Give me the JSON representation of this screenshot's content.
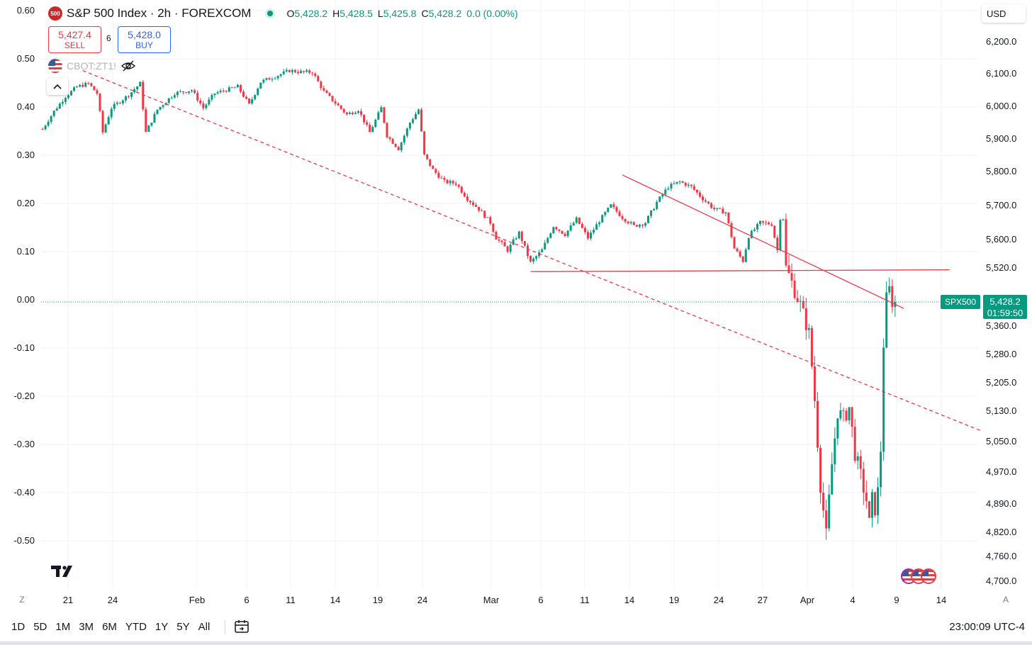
{
  "header": {
    "logo_text": "500",
    "symbol_title": "S&P 500 Index · 2h · FOREXCOM",
    "ohlc": {
      "o_label": "O",
      "o": "5,428.2",
      "h_label": "H",
      "h": "5,428.5",
      "l_label": "L",
      "l": "5,425.8",
      "c_label": "C",
      "c": "5,428.2",
      "change": "0.0 (0.00%)"
    }
  },
  "trade": {
    "sell_price": "5,427.4",
    "sell_label": "SELL",
    "spread": "6",
    "buy_price": "5,428.0",
    "buy_label": "BUY"
  },
  "compare": {
    "symbol": "CBOT:ZT1!"
  },
  "currency": "USD",
  "price_tag": {
    "symbol": "SPX500",
    "price": "5,428.2",
    "countdown": "01:59:50"
  },
  "colors": {
    "up": "#089981",
    "down": "#f23645",
    "trendline": "#f23645",
    "last_price": "#089981",
    "grid": "#f0f3fa"
  },
  "icons": [
    "eye-off-icon",
    "chevron-up-icon",
    "us-flag-icon",
    "date-range-icon",
    "tradingview-logo-icon"
  ],
  "chart_data": {
    "type": "candlestick",
    "right_axis": {
      "ticks": [
        6200,
        6100,
        6000,
        5900,
        5800,
        5700,
        5600,
        5520,
        5360,
        5280,
        5205,
        5130,
        5050,
        4970,
        4890,
        4820,
        4760,
        4700
      ],
      "tick_labels": [
        "6,200.0",
        "6,100.0",
        "6,000.0",
        "5,900.0",
        "5,800.0",
        "5,700.0",
        "5,600.0",
        "5,520.0",
        "5,360.0",
        "5,280.0",
        "5,205.0",
        "5,130.0",
        "5,050.0",
        "4,970.0",
        "4,890.0",
        "4,820.0",
        "4,760.0",
        "4,700.0"
      ]
    },
    "left_axis": {
      "ticks": [
        0.6,
        0.5,
        0.4,
        0.3,
        0.2,
        0.1,
        0.0,
        -0.1,
        -0.2,
        -0.3,
        -0.4,
        -0.5
      ],
      "tick_labels": [
        "0.60",
        "0.50",
        "0.40",
        "0.30",
        "0.20",
        "0.10",
        "0.00",
        "-0.10",
        "-0.20",
        "-0.30",
        "-0.40",
        "-0.50"
      ]
    },
    "x_axis": {
      "labels": [
        "21",
        "24",
        "Feb",
        "6",
        "11",
        "14",
        "19",
        "24",
        "Mar",
        "6",
        "11",
        "14",
        "19",
        "24",
        "27",
        "Apr",
        "4",
        "9",
        "14"
      ]
    },
    "series_anchor_points": [
      [
        0,
        5930
      ],
      [
        2,
        5985
      ],
      [
        4,
        6030
      ],
      [
        6,
        6060
      ],
      [
        8,
        6070
      ],
      [
        9.5,
        6040
      ],
      [
        10.5,
        5920
      ],
      [
        12,
        5995
      ],
      [
        15,
        6035
      ],
      [
        17,
        6070
      ],
      [
        18,
        5920
      ],
      [
        20,
        5990
      ],
      [
        23,
        6040
      ],
      [
        26,
        6050
      ],
      [
        28,
        5995
      ],
      [
        30,
        6040
      ],
      [
        34,
        6060
      ],
      [
        36,
        6005
      ],
      [
        38,
        6075
      ],
      [
        41,
        6095
      ],
      [
        43,
        6110
      ],
      [
        45,
        6105
      ],
      [
        47,
        6105
      ],
      [
        49,
        6045
      ],
      [
        51,
        6010
      ],
      [
        53,
        5975
      ],
      [
        55,
        5990
      ],
      [
        57,
        5920
      ],
      [
        59,
        5995
      ],
      [
        60,
        5910
      ],
      [
        62,
        5870
      ],
      [
        64,
        5950
      ],
      [
        65.5,
        5990
      ],
      [
        66.5,
        5850
      ],
      [
        68,
        5805
      ],
      [
        70,
        5770
      ],
      [
        72,
        5765
      ],
      [
        74,
        5720
      ],
      [
        76,
        5690
      ],
      [
        78,
        5650
      ],
      [
        79,
        5605
      ],
      [
        81,
        5570
      ],
      [
        83,
        5620
      ],
      [
        85,
        5535
      ],
      [
        87,
        5570
      ],
      [
        89,
        5640
      ],
      [
        91,
        5615
      ],
      [
        93,
        5660
      ],
      [
        95,
        5605
      ],
      [
        97,
        5655
      ],
      [
        99,
        5700
      ],
      [
        101,
        5665
      ],
      [
        103,
        5640
      ],
      [
        105,
        5650
      ],
      [
        107,
        5710
      ],
      [
        109,
        5755
      ],
      [
        111,
        5770
      ],
      [
        113,
        5755
      ],
      [
        115,
        5720
      ],
      [
        117,
        5690
      ],
      [
        119,
        5680
      ],
      [
        120.5,
        5575
      ],
      [
        122,
        5540
      ],
      [
        123,
        5610
      ],
      [
        125,
        5650
      ],
      [
        127,
        5645
      ],
      [
        128,
        5570
      ],
      [
        128.8,
        5720
      ],
      [
        129.5,
        5520
      ],
      [
        130.5,
        5480
      ],
      [
        132,
        5420
      ],
      [
        133.5,
        5340
      ],
      [
        134.5,
        5160
      ],
      [
        135.5,
        4940
      ],
      [
        136.5,
        4810
      ],
      [
        137.5,
        4990
      ],
      [
        138.5,
        5130
      ],
      [
        139.5,
        5110
      ],
      [
        140.5,
        5140
      ],
      [
        141.5,
        5020
      ],
      [
        142.5,
        4960
      ],
      [
        143.5,
        4900
      ],
      [
        144,
        4840
      ],
      [
        144.5,
        4900
      ],
      [
        145,
        4880
      ],
      [
        145.5,
        4920
      ],
      [
        146,
        5030
      ],
      [
        146.5,
        5310
      ],
      [
        147,
        5435
      ],
      [
        147.5,
        5460
      ],
      [
        148,
        5430
      ],
      [
        148.5,
        5428.2
      ]
    ],
    "lines": [
      {
        "name": "",
        "style": "dashed",
        "from": [
          7,
          6110
        ],
        "to": [
          184,
          4955
        ]
      },
      {
        "name": "",
        "style": "solid",
        "from": [
          101,
          5790
        ],
        "to": [
          150,
          5410
        ]
      },
      {
        "name": "",
        "style": "solid",
        "from": [
          85,
          5510
        ],
        "to": [
          158,
          5515
        ]
      }
    ],
    "last_price": 5428.2,
    "grid": true
  },
  "bottom_bar": {
    "ranges": [
      "1D",
      "5D",
      "1M",
      "3M",
      "6M",
      "YTD",
      "1Y",
      "5Y",
      "All"
    ],
    "clock": "23:00:09 UTC-4",
    "corner_left": "Z",
    "corner_right": "A"
  }
}
